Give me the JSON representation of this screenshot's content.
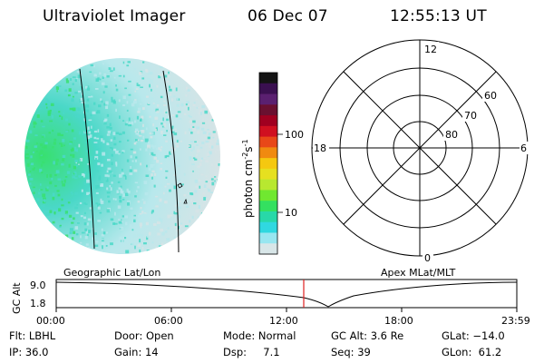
{
  "header": {
    "instrument": "Ultraviolet Imager",
    "date": "06 Dec 07",
    "time": "12:55:13 UT"
  },
  "colorbar": {
    "label_main": "photon cm",
    "label_sup1": "-2",
    "label_s": "s",
    "label_sup2": "-1",
    "tick_100": "100",
    "tick_10": "10",
    "colors": [
      "#141414",
      "#3a1050",
      "#5a2070",
      "#6a1030",
      "#a00020",
      "#d01020",
      "#e84818",
      "#f08a10",
      "#f5c810",
      "#e6e020",
      "#b8e830",
      "#70e830",
      "#34e060",
      "#28d8a8",
      "#30d8e0",
      "#98e6f0",
      "#d8e6e8"
    ]
  },
  "imager_map": {
    "fill_colors": [
      "#4ad8c8",
      "#38e070",
      "#b8e8ec",
      "#d6e4e6"
    ]
  },
  "polar_plot": {
    "mlt_top": "12",
    "mlt_bottom": "0",
    "mlt_left": "18",
    "mlt_right": "6",
    "lat_60": "60",
    "lat_70": "70",
    "lat_80": "80"
  },
  "timeline": {
    "label_left": "Geographic Lat/Lon",
    "label_right": "Apex MLat/MLT",
    "axis_label": "GC Alt",
    "y_top": "9.0",
    "y_bottom": "1.8",
    "ticks": [
      "00:00",
      "06:00",
      "12:00",
      "18:00",
      "23:59"
    ],
    "marker_color": "#e02020"
  },
  "info": {
    "filter": "Flt: LBHL",
    "door": "Door: Open",
    "mode": "Mode: Normal",
    "gc_alt": "GC Alt: 3.6 Re",
    "glat": "GLat: −14.0",
    "ip": "IP: 36.0",
    "gain": "Gain: 14",
    "dsp": "Dsp:     7.1",
    "seq": "Seq: 39",
    "glon": "GLon:  61.2"
  }
}
